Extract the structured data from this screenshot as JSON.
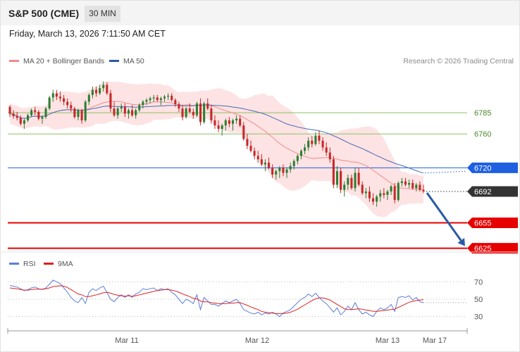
{
  "header": {
    "title": "S&P 500 (CME)",
    "timeframe": "30 MIN",
    "timestamp": "Friday, March 13, 2026 7:11:50 AM CET"
  },
  "legend": {
    "ma20": "MA 20 + Bollinger Bands",
    "ma50": "MA 50",
    "credit": "Research © 2026 Trading Central",
    "rsi": "RSI",
    "rsi_ma": "9MA"
  },
  "colors": {
    "up": "#2e7d32",
    "down": "#c62828",
    "bollinger_fill": "#fde3e3",
    "ma20": "#f08c8c",
    "ma50": "#4a6bb8",
    "resistance": "#8cc266",
    "pivot": "#1f5fe0",
    "support": "#e60000",
    "last_price": "#333333",
    "arrow": "#2b5aa6",
    "rsi": "#5b7fd9",
    "rsi_ma": "#e02020"
  },
  "chart_data": [
    {
      "type": "candlestick",
      "title": "S&P 500 (CME)",
      "timeframe": "30 MIN",
      "x_tick_labels": [
        "Mar 11",
        "Mar 12",
        "Mar 13",
        "Mar 17"
      ],
      "price_levels": [
        {
          "value": 6785,
          "label": "6785",
          "kind": "resistance"
        },
        {
          "value": 6760,
          "label": "6760",
          "kind": "resistance"
        },
        {
          "value": 6720,
          "label": "6720",
          "kind": "pivot"
        },
        {
          "value": 6692,
          "label": "6692",
          "kind": "last"
        },
        {
          "value": 6655,
          "label": "6655",
          "kind": "support"
        },
        {
          "value": 6625,
          "label": "6625",
          "kind": "support"
        }
      ],
      "ylim": [
        6623,
        6835
      ],
      "forecast_arrow": {
        "from": 6692,
        "to": 6625
      },
      "candles": [
        [
          6792,
          6794,
          6780,
          6784
        ],
        [
          6784,
          6788,
          6778,
          6781
        ],
        [
          6781,
          6786,
          6776,
          6779
        ],
        [
          6779,
          6782,
          6770,
          6772
        ],
        [
          6772,
          6778,
          6766,
          6776
        ],
        [
          6776,
          6784,
          6774,
          6782
        ],
        [
          6782,
          6790,
          6780,
          6788
        ],
        [
          6788,
          6792,
          6782,
          6786
        ],
        [
          6786,
          6788,
          6776,
          6778
        ],
        [
          6778,
          6782,
          6772,
          6780
        ],
        [
          6780,
          6792,
          6778,
          6790
        ],
        [
          6790,
          6805,
          6788,
          6803
        ],
        [
          6803,
          6812,
          6798,
          6808
        ],
        [
          6808,
          6812,
          6800,
          6804
        ],
        [
          6804,
          6810,
          6798,
          6802
        ],
        [
          6802,
          6806,
          6794,
          6798
        ],
        [
          6798,
          6802,
          6790,
          6794
        ],
        [
          6794,
          6798,
          6786,
          6790
        ],
        [
          6790,
          6792,
          6778,
          6780
        ],
        [
          6780,
          6790,
          6776,
          6788
        ],
        [
          6788,
          6790,
          6772,
          6776
        ],
        [
          6776,
          6800,
          6774,
          6798
        ],
        [
          6798,
          6808,
          6794,
          6806
        ],
        [
          6806,
          6816,
          6802,
          6812
        ],
        [
          6812,
          6816,
          6804,
          6808
        ],
        [
          6808,
          6818,
          6806,
          6814
        ],
        [
          6814,
          6822,
          6810,
          6818
        ],
        [
          6818,
          6821,
          6806,
          6808
        ],
        [
          6808,
          6812,
          6786,
          6790
        ],
        [
          6790,
          6798,
          6780,
          6782
        ],
        [
          6782,
          6792,
          6778,
          6790
        ],
        [
          6790,
          6796,
          6786,
          6792
        ],
        [
          6792,
          6796,
          6780,
          6784
        ],
        [
          6784,
          6790,
          6778,
          6788
        ],
        [
          6788,
          6794,
          6780,
          6782
        ],
        [
          6782,
          6790,
          6778,
          6788
        ],
        [
          6788,
          6796,
          6786,
          6794
        ],
        [
          6794,
          6800,
          6790,
          6798
        ],
        [
          6798,
          6802,
          6794,
          6800
        ],
        [
          6800,
          6804,
          6796,
          6802
        ],
        [
          6802,
          6806,
          6798,
          6803
        ],
        [
          6803,
          6806,
          6798,
          6800
        ],
        [
          6800,
          6804,
          6794,
          6802
        ],
        [
          6802,
          6806,
          6798,
          6804
        ],
        [
          6804,
          6808,
          6800,
          6805
        ],
        [
          6805,
          6808,
          6798,
          6800
        ],
        [
          6800,
          6802,
          6792,
          6795
        ],
        [
          6795,
          6798,
          6786,
          6790
        ],
        [
          6790,
          6794,
          6776,
          6780
        ],
        [
          6780,
          6792,
          6778,
          6790
        ],
        [
          6790,
          6796,
          6784,
          6786
        ],
        [
          6786,
          6790,
          6778,
          6782
        ],
        [
          6782,
          6798,
          6780,
          6796
        ],
        [
          6796,
          6802,
          6770,
          6774
        ],
        [
          6774,
          6798,
          6772,
          6796
        ],
        [
          6796,
          6802,
          6788,
          6790
        ],
        [
          6790,
          6794,
          6772,
          6776
        ],
        [
          6776,
          6782,
          6766,
          6770
        ],
        [
          6770,
          6776,
          6762,
          6766
        ],
        [
          6766,
          6772,
          6758,
          6770
        ],
        [
          6770,
          6778,
          6764,
          6776
        ],
        [
          6776,
          6780,
          6768,
          6772
        ],
        [
          6772,
          6778,
          6764,
          6776
        ],
        [
          6776,
          6782,
          6772,
          6778
        ],
        [
          6778,
          6782,
          6768,
          6770
        ],
        [
          6770,
          6774,
          6752,
          6754
        ],
        [
          6754,
          6760,
          6742,
          6746
        ],
        [
          6746,
          6752,
          6738,
          6740
        ],
        [
          6740,
          6744,
          6730,
          6734
        ],
        [
          6734,
          6740,
          6726,
          6730
        ],
        [
          6730,
          6736,
          6722,
          6724
        ],
        [
          6724,
          6730,
          6716,
          6726
        ],
        [
          6726,
          6732,
          6718,
          6720
        ],
        [
          6720,
          6724,
          6708,
          6712
        ],
        [
          6712,
          6718,
          6706,
          6716
        ],
        [
          6716,
          6722,
          6708,
          6720
        ],
        [
          6720,
          6724,
          6710,
          6714
        ],
        [
          6714,
          6720,
          6708,
          6718
        ],
        [
          6718,
          6726,
          6714,
          6722
        ],
        [
          6722,
          6730,
          6718,
          6728
        ],
        [
          6728,
          6736,
          6724,
          6734
        ],
        [
          6734,
          6742,
          6730,
          6740
        ],
        [
          6740,
          6748,
          6736,
          6744
        ],
        [
          6744,
          6756,
          6740,
          6752
        ],
        [
          6752,
          6758,
          6744,
          6748
        ],
        [
          6748,
          6762,
          6746,
          6758
        ],
        [
          6758,
          6764,
          6748,
          6752
        ],
        [
          6752,
          6756,
          6740,
          6744
        ],
        [
          6744,
          6750,
          6734,
          6738
        ],
        [
          6738,
          6744,
          6726,
          6730
        ],
        [
          6730,
          6734,
          6696,
          6700
        ],
        [
          6700,
          6722,
          6696,
          6716
        ],
        [
          6716,
          6720,
          6690,
          6694
        ],
        [
          6694,
          6704,
          6686,
          6700
        ],
        [
          6700,
          6712,
          6694,
          6708
        ],
        [
          6708,
          6712,
          6694,
          6696
        ],
        [
          6696,
          6720,
          6692,
          6714
        ],
        [
          6714,
          6720,
          6698,
          6700
        ],
        [
          6700,
          6704,
          6688,
          6690
        ],
        [
          6690,
          6696,
          6684,
          6692
        ],
        [
          6692,
          6698,
          6680,
          6684
        ],
        [
          6684,
          6690,
          6676,
          6680
        ],
        [
          6680,
          6688,
          6674,
          6686
        ],
        [
          6686,
          6694,
          6680,
          6690
        ],
        [
          6690,
          6696,
          6684,
          6688
        ],
        [
          6688,
          6694,
          6682,
          6692
        ],
        [
          6692,
          6700,
          6688,
          6698
        ],
        [
          6698,
          6702,
          6678,
          6682
        ],
        [
          6682,
          6704,
          6680,
          6702
        ],
        [
          6702,
          6708,
          6698,
          6704
        ],
        [
          6704,
          6708,
          6698,
          6700
        ],
        [
          6700,
          6706,
          6696,
          6702
        ],
        [
          6702,
          6706,
          6694,
          6696
        ],
        [
          6696,
          6702,
          6692,
          6700
        ],
        [
          6700,
          6704,
          6692,
          6694
        ],
        [
          6694,
          6700,
          6690,
          6692
        ]
      ]
    },
    {
      "type": "line",
      "name_label": "RSI",
      "ylim": [
        20,
        80
      ],
      "y_ticks": [
        30,
        50,
        70
      ],
      "series": [
        {
          "name": "RSI",
          "values": [
            66,
            65,
            64,
            62,
            60,
            61,
            63,
            64,
            62,
            61,
            63,
            67,
            72,
            70,
            68,
            63,
            58,
            52,
            48,
            46,
            52,
            45,
            58,
            62,
            60,
            63,
            65,
            58,
            50,
            47,
            52,
            55,
            52,
            55,
            52,
            56,
            58,
            62,
            61,
            62,
            63,
            60,
            62,
            61,
            62,
            58,
            55,
            50,
            45,
            50,
            48,
            45,
            55,
            38,
            52,
            48,
            44,
            44,
            42,
            45,
            48,
            46,
            48,
            50,
            45,
            38,
            36,
            34,
            33,
            35,
            32,
            34,
            33,
            35,
            33,
            30,
            34,
            36,
            38,
            42,
            46,
            50,
            52,
            56,
            53,
            57,
            52,
            48,
            45,
            40,
            35,
            40,
            32,
            36,
            42,
            38,
            46,
            38,
            33,
            35,
            32,
            30,
            36,
            40,
            38,
            40,
            44,
            36,
            52,
            53,
            52,
            54,
            49,
            52,
            47,
            46
          ]
        },
        {
          "name": "9MA",
          "values": [
            63,
            62.5,
            62,
            61,
            60.5,
            60.5,
            61,
            61.5,
            61.5,
            61.5,
            62,
            63,
            64.5,
            65,
            65.5,
            65,
            63.5,
            61,
            58.5,
            56,
            55,
            53,
            53,
            54,
            55,
            56,
            57.5,
            58,
            57,
            55.5,
            54.5,
            54,
            53.5,
            54,
            53.5,
            54,
            55,
            56,
            57,
            58,
            59,
            60,
            60.5,
            61,
            61,
            60.5,
            59.5,
            58,
            56,
            54.5,
            53,
            51,
            50.5,
            48,
            47,
            47,
            46,
            45.5,
            45,
            45,
            45,
            45.5,
            45.5,
            46,
            46,
            44.5,
            43,
            41,
            39.5,
            38,
            36,
            35,
            34.5,
            34,
            33.5,
            33.5,
            33.5,
            34,
            35,
            36.5,
            38.5,
            41,
            43.5,
            46,
            48.5,
            50.5,
            51.5,
            51.5,
            50.5,
            49,
            46.5,
            44,
            41.5,
            39,
            38,
            38,
            38.5,
            39,
            38.5,
            37.5,
            37,
            36,
            36,
            36.5,
            37,
            37.5,
            38,
            38.5,
            40.5,
            42.5,
            44.5,
            46.5,
            47.5,
            48.5,
            49,
            49.5
          ]
        }
      ]
    }
  ]
}
